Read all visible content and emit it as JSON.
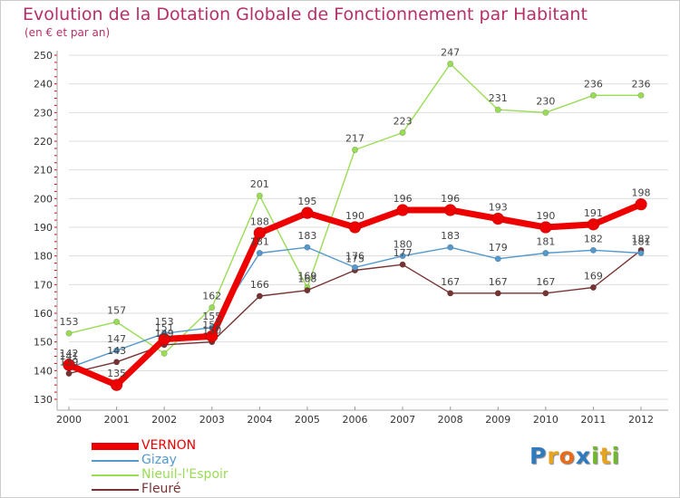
{
  "title": "Evolution de la Dotation Globale de Fonctionnement par Habitant",
  "subtitle": "(en € et par an)",
  "logo": {
    "letters": [
      "P",
      "r",
      "o",
      "x",
      "i",
      "t",
      "i"
    ],
    "colors": [
      "#2e7bbf",
      "#e8a41c",
      "#e86c1c",
      "#2e7bbf",
      "#6fb82e",
      "#e8a41c",
      "#6fb82e"
    ]
  },
  "chart_data": {
    "type": "line",
    "title": "Evolution de la Dotation Globale de Fonctionnement par Habitant",
    "subtitle": "(en € et par an)",
    "xlabel": "",
    "ylabel": "",
    "ylim": [
      130,
      250
    ],
    "yticks": [
      130,
      140,
      150,
      160,
      170,
      180,
      190,
      200,
      210,
      220,
      230,
      240,
      250
    ],
    "x": [
      "2000",
      "2001",
      "2002",
      "2003",
      "2004",
      "2005",
      "2006",
      "2007",
      "2008",
      "2009",
      "2010",
      "2011",
      "2012"
    ],
    "series": [
      {
        "name": "Nieuil-l'Espoir",
        "color": "#99dd55",
        "values": [
          153,
          157,
          146,
          162,
          201,
          169,
          217,
          223,
          247,
          231,
          230,
          236,
          236
        ],
        "labels": [
          "153",
          "157",
          "",
          "162",
          "201",
          "169",
          "217",
          "223",
          "247",
          "231",
          "230",
          "236",
          "236"
        ]
      },
      {
        "name": "Fleuré",
        "color": "#773333",
        "values": [
          139,
          143,
          149,
          150,
          166,
          168,
          175,
          177,
          167,
          167,
          167,
          169,
          182
        ],
        "labels": [
          "139",
          "143",
          "149",
          "150",
          "166",
          "168",
          "175",
          "177",
          "167",
          "167",
          "167",
          "169",
          "182"
        ]
      },
      {
        "name": "Gizay",
        "color": "#5599cc",
        "values": [
          141,
          147,
          153,
          155,
          181,
          183,
          176,
          180,
          183,
          179,
          181,
          182,
          181
        ],
        "labels": [
          "141",
          "147",
          "153",
          "155",
          "181",
          "183",
          "176",
          "180",
          "183",
          "179",
          "181",
          "182",
          "181"
        ]
      },
      {
        "name": "VERNON",
        "color": "#ee0000",
        "values": [
          142,
          135,
          151,
          152,
          188,
          195,
          190,
          196,
          196,
          193,
          190,
          191,
          198
        ],
        "labels": [
          "142",
          "135",
          "151",
          "152",
          "188",
          "195",
          "190",
          "196",
          "196",
          "193",
          "190",
          "191",
          "198"
        ]
      }
    ],
    "legend": [
      {
        "name": "VERNON",
        "color": "#ee0000"
      },
      {
        "name": "Gizay",
        "color": "#5599cc"
      },
      {
        "name": "Nieuil-l'Espoir",
        "color": "#99dd55"
      },
      {
        "name": "Fleuré",
        "color": "#773333"
      }
    ]
  }
}
